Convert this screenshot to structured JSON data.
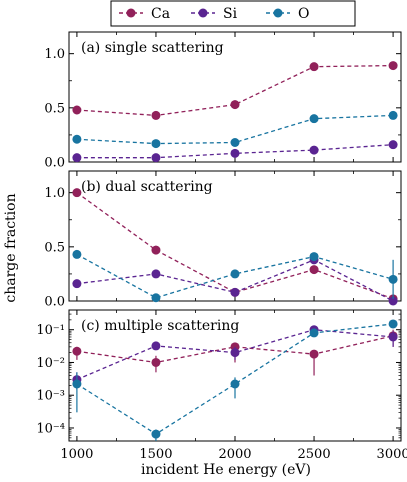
{
  "colors": {
    "Ca": "#91215a",
    "Si": "#5a2491",
    "O": "#1874a0"
  },
  "legend": {
    "items": [
      "Ca",
      "Si",
      "O"
    ]
  },
  "shared_axes": {
    "xlabel": "incident He energy (eV)",
    "ylabel": "charge fraction",
    "x_ticks": [
      "1000",
      "1500",
      "2000",
      "2500",
      "3000"
    ]
  },
  "chart_data": [
    {
      "type": "line",
      "title": "(a) single scattering",
      "x": [
        1000,
        1500,
        2000,
        2500,
        3000
      ],
      "xlim": [
        950,
        3050
      ],
      "ylim": [
        0,
        1.2
      ],
      "yscale": "linear",
      "y_ticks": [
        0.0,
        0.5,
        1.0
      ],
      "y_tick_labels": [
        "0.0",
        "0.5",
        "1.0"
      ],
      "series": [
        {
          "name": "Ca",
          "values": [
            0.48,
            0.43,
            0.53,
            0.88,
            0.89
          ],
          "errors": [
            0.04,
            0.04,
            0.04,
            0.015,
            0.015
          ]
        },
        {
          "name": "Si",
          "values": [
            0.04,
            0.04,
            0.08,
            0.11,
            0.16
          ],
          "errors": [
            0.01,
            0.01,
            0.01,
            0.01,
            0.01
          ]
        },
        {
          "name": "O",
          "values": [
            0.21,
            0.17,
            0.18,
            0.4,
            0.43
          ],
          "errors": [
            0.01,
            0.01,
            0.01,
            0.01,
            0.01
          ]
        }
      ]
    },
    {
      "type": "line",
      "title": "(b) dual scattering",
      "x": [
        1000,
        1500,
        2000,
        2500,
        3000
      ],
      "xlim": [
        950,
        3050
      ],
      "ylim": [
        0,
        1.2
      ],
      "yscale": "linear",
      "y_ticks": [
        0.0,
        0.5,
        1.0
      ],
      "y_tick_labels": [
        "0.0",
        "0.5",
        "1.0"
      ],
      "series": [
        {
          "name": "Ca",
          "values": [
            1.0,
            0.47,
            0.08,
            0.29,
            0.02
          ],
          "errors": [
            0.01,
            0.04,
            0.02,
            0.03,
            0.01
          ]
        },
        {
          "name": "Si",
          "values": [
            0.16,
            0.25,
            0.08,
            0.38,
            0.0
          ],
          "errors": [
            0.01,
            0.01,
            0.03,
            0.03,
            0.01
          ]
        },
        {
          "name": "O",
          "values": [
            0.43,
            0.03,
            0.25,
            0.41,
            0.2
          ],
          "errors": [
            0.01,
            0.01,
            0.01,
            0.02,
            0.18
          ]
        }
      ]
    },
    {
      "type": "line",
      "title": "(c) multiple scattering",
      "x": [
        1000,
        1500,
        2000,
        2500,
        3000
      ],
      "xlim": [
        950,
        3050
      ],
      "ylim": [
        4e-05,
        0.4
      ],
      "yscale": "log",
      "y_ticks": [
        0.0001,
        0.001,
        0.01,
        0.1
      ],
      "y_tick_labels": [
        "10⁻⁴",
        "10⁻³",
        "10⁻²",
        "10⁻¹"
      ],
      "series": [
        {
          "name": "Ca",
          "values": [
            0.022,
            0.01,
            0.03,
            0.018,
            0.065
          ],
          "err_low": [
            0.012,
            0.005,
            0.01,
            0.004,
            0.03
          ],
          "err_high": [
            0.03,
            0.016,
            0.038,
            0.02,
            0.1
          ]
        },
        {
          "name": "Si",
          "values": [
            0.003,
            0.032,
            0.02,
            0.1,
            0.06
          ],
          "err_low": [
            0.0015,
            0.027,
            0.012,
            0.08,
            0.03
          ],
          "err_high": [
            0.005,
            0.036,
            0.03,
            0.12,
            0.09
          ]
        },
        {
          "name": "O",
          "values": [
            0.0022,
            6.5e-05,
            0.0022,
            0.08,
            0.15
          ],
          "err_low": [
            0.0003,
            4e-05,
            0.0008,
            0.06,
            0.13
          ],
          "err_high": [
            0.005,
            9e-05,
            0.0035,
            0.1,
            0.17
          ]
        }
      ]
    }
  ]
}
